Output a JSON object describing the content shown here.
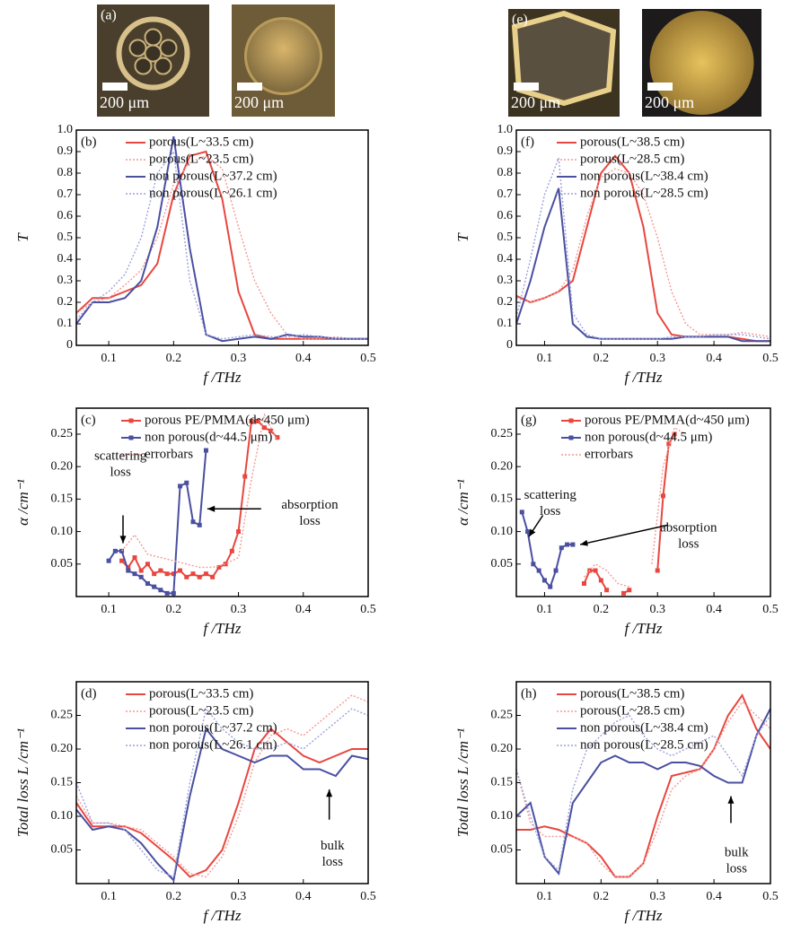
{
  "photos": [
    {
      "label": "(a)",
      "scale_bar": "200 μm"
    },
    {
      "scale_bar": "200 μm"
    },
    {
      "label": "(e)",
      "scale_bar": "200 μm"
    },
    {
      "scale_bar": "200 μm"
    }
  ],
  "chart_data": [
    {
      "type": "line",
      "label": "(b)",
      "xlabel": "f /THz",
      "ylabel": "T",
      "xlim": [
        0.05,
        0.5
      ],
      "ylim": [
        0,
        1
      ],
      "xticks": [
        0.1,
        0.2,
        0.3,
        0.4,
        0.5
      ],
      "yticks": [
        0,
        0.1,
        0.2,
        0.3,
        0.4,
        0.5,
        0.6,
        0.7,
        0.8,
        0.9,
        {
          "value": 1,
          "label": "1.0"
        }
      ],
      "x": [
        0.05,
        0.075,
        0.1,
        0.125,
        0.15,
        0.175,
        0.2,
        0.225,
        0.25,
        0.275,
        0.3,
        0.325,
        0.35,
        0.375,
        0.4,
        0.425,
        0.45,
        0.475,
        0.5
      ],
      "series": [
        {
          "name": "porous(L~33.5 cm)",
          "color": "#e8473f",
          "style": "solid",
          "values": [
            0.15,
            0.22,
            0.22,
            0.25,
            0.28,
            0.38,
            0.7,
            0.88,
            0.9,
            0.68,
            0.25,
            0.05,
            0.03,
            0.03,
            0.03,
            0.03,
            0.03,
            0.03,
            0.03
          ]
        },
        {
          "name": "porous(L~23.5 cm)",
          "color": "#f39a96",
          "style": "dotted",
          "values": [
            0.15,
            0.2,
            0.22,
            0.28,
            0.35,
            0.5,
            0.75,
            0.85,
            0.88,
            0.82,
            0.55,
            0.3,
            0.15,
            0.05,
            0.03,
            0.03,
            0.04,
            0.03,
            0.03
          ]
        },
        {
          "name": "non porous(L~37.2 cm)",
          "color": "#4a4fa0",
          "style": "solid",
          "values": [
            0.1,
            0.2,
            0.2,
            0.22,
            0.3,
            0.55,
            0.97,
            0.45,
            0.05,
            0.02,
            0.03,
            0.04,
            0.03,
            0.05,
            0.04,
            0.04,
            0.03,
            0.03,
            0.03
          ]
        },
        {
          "name": "non porous(L~26.1 cm)",
          "color": "#9ca2dc",
          "style": "dotted",
          "values": [
            0.12,
            0.2,
            0.25,
            0.33,
            0.5,
            0.8,
            0.9,
            0.3,
            0.05,
            0.03,
            0.04,
            0.05,
            0.04,
            0.04,
            0.05,
            0.04,
            0.03,
            0.03,
            0.03
          ]
        }
      ]
    },
    {
      "type": "line",
      "label": "(f)",
      "xlabel": "f /THz",
      "ylabel": "T",
      "xlim": [
        0.05,
        0.5
      ],
      "ylim": [
        0,
        1
      ],
      "xticks": [
        0.1,
        0.2,
        0.3,
        0.4,
        0.5
      ],
      "yticks": [
        0,
        0.1,
        0.2,
        0.3,
        0.4,
        0.5,
        0.6,
        0.7,
        0.8,
        0.9,
        {
          "value": 1,
          "label": "1.0"
        }
      ],
      "x": [
        0.05,
        0.075,
        0.1,
        0.125,
        0.15,
        0.175,
        0.2,
        0.225,
        0.25,
        0.275,
        0.3,
        0.325,
        0.35,
        0.375,
        0.4,
        0.425,
        0.45,
        0.475,
        0.5
      ],
      "series": [
        {
          "name": "porous(L~38.5 cm)",
          "color": "#e8473f",
          "style": "solid",
          "values": [
            0.23,
            0.2,
            0.22,
            0.25,
            0.3,
            0.55,
            0.8,
            0.88,
            0.8,
            0.55,
            0.15,
            0.05,
            0.04,
            0.04,
            0.04,
            0.04,
            0.03,
            0.02,
            0.02
          ]
        },
        {
          "name": "porous(L~28.5 cm)",
          "color": "#f39a96",
          "style": "dotted",
          "values": [
            0.22,
            0.2,
            0.22,
            0.25,
            0.35,
            0.6,
            0.78,
            0.82,
            0.8,
            0.7,
            0.5,
            0.25,
            0.1,
            0.05,
            0.05,
            0.05,
            0.06,
            0.05,
            0.04
          ]
        },
        {
          "name": "non porous(L~38.4 cm)",
          "color": "#4a4fa0",
          "style": "solid",
          "values": [
            0.1,
            0.3,
            0.55,
            0.73,
            0.1,
            0.04,
            0.03,
            0.03,
            0.03,
            0.03,
            0.03,
            0.03,
            0.04,
            0.04,
            0.04,
            0.04,
            0.02,
            0.02,
            0.02
          ]
        },
        {
          "name": "non porous(L~28.5 cm)",
          "color": "#9ca2dc",
          "style": "dotted",
          "values": [
            0.13,
            0.4,
            0.7,
            0.87,
            0.15,
            0.05,
            0.03,
            0.03,
            0.03,
            0.03,
            0.03,
            0.04,
            0.04,
            0.04,
            0.05,
            0.05,
            0.05,
            0.04,
            0.03
          ]
        }
      ]
    },
    {
      "type": "line",
      "label": "(c)",
      "xlabel": "f /THz",
      "ylabel": "α /cm⁻¹",
      "xlim": [
        0.05,
        0.5
      ],
      "ylim": [
        0,
        0.29
      ],
      "xticks": [
        0.1,
        0.2,
        0.3,
        0.4,
        0.5
      ],
      "yticks": [
        0.05,
        {
          "value": 0.1,
          "label": "0.10"
        },
        0.15,
        {
          "value": 0.2,
          "label": "0.20"
        },
        0.25
      ],
      "annotations": [
        [
          "scattering",
          "loss"
        ],
        [
          "absorption",
          "loss"
        ]
      ],
      "series": [
        {
          "name": "porous PE/PMMA(d~450 μm)",
          "color": "#e8473f",
          "style": "solid",
          "marker": "square",
          "x": [
            0.12,
            0.13,
            0.14,
            0.15,
            0.16,
            0.17,
            0.18,
            0.19,
            0.2,
            0.21,
            0.22,
            0.23,
            0.24,
            0.25,
            0.26,
            0.27,
            0.28,
            0.29,
            0.3,
            0.31,
            0.32,
            0.33,
            0.34,
            0.35,
            0.36
          ],
          "values": [
            0.055,
            0.045,
            0.06,
            0.04,
            0.05,
            0.035,
            0.04,
            0.035,
            0.035,
            0.04,
            0.03,
            0.035,
            0.03,
            0.035,
            0.03,
            0.045,
            0.05,
            0.07,
            0.1,
            0.185,
            0.27,
            0.27,
            0.26,
            0.255,
            0.245
          ]
        },
        {
          "name": "non porous(d~44.5 μm)",
          "color": "#4a4fa0",
          "style": "solid",
          "marker": "square",
          "x": [
            0.1,
            0.11,
            0.12,
            0.13,
            0.14,
            0.15,
            0.16,
            0.17,
            0.18,
            0.19,
            0.2,
            0.21,
            0.22,
            0.23,
            0.24,
            0.25
          ],
          "values": [
            0.055,
            0.07,
            0.07,
            0.04,
            0.035,
            0.03,
            0.02,
            0.015,
            0.01,
            0.005,
            0.005,
            0.17,
            0.175,
            0.115,
            0.11,
            0.225
          ]
        },
        {
          "name": "errorbars",
          "color": "#f39a96",
          "style": "dotted",
          "x": [
            0.12,
            0.14,
            0.16,
            0.18,
            0.2,
            0.22,
            0.24,
            0.26,
            0.28,
            0.3,
            0.32,
            0.34,
            0.36
          ],
          "values": [
            0.07,
            0.095,
            0.065,
            0.06,
            0.055,
            0.05,
            0.045,
            0.045,
            0.05,
            0.06,
            0.18,
            0.28,
            0.24
          ]
        }
      ]
    },
    {
      "type": "line",
      "label": "(g)",
      "xlabel": "f /THz",
      "ylabel": "α /cm⁻¹",
      "xlim": [
        0.05,
        0.5
      ],
      "ylim": [
        0,
        0.29
      ],
      "xticks": [
        0.1,
        0.2,
        0.3,
        0.4,
        0.5
      ],
      "yticks": [
        0.05,
        {
          "value": 0.1,
          "label": "0.10"
        },
        0.15,
        {
          "value": 0.2,
          "label": "0.20"
        },
        0.25
      ],
      "annotations": [
        [
          "scattering",
          "loss"
        ],
        [
          "absorption",
          "loss"
        ]
      ],
      "series": [
        {
          "name": "porous PE/PMMA(d~450 μm)",
          "color": "#e8473f",
          "style": "solid",
          "marker": "square",
          "x": [
            0.17,
            0.18,
            0.19,
            0.2,
            0.21,
            0.22,
            0.23,
            0.24,
            0.25,
            0.26,
            0.27,
            0.28,
            0.29,
            0.3,
            0.31,
            0.32,
            0.33
          ],
          "values": [
            0.02,
            0.04,
            0.04,
            0.025,
            0.01,
            null,
            null,
            0.005,
            0.01,
            null,
            null,
            null,
            null,
            0.04,
            0.155,
            0.235,
            0.25
          ]
        },
        {
          "name": "non porous(d~44.5 μm)",
          "color": "#4a4fa0",
          "style": "solid",
          "marker": "square",
          "x": [
            0.06,
            0.07,
            0.08,
            0.09,
            0.1,
            0.11,
            0.12,
            0.13,
            0.14,
            0.15
          ],
          "values": [
            0.13,
            0.1,
            0.05,
            0.04,
            0.025,
            0.015,
            0.04,
            0.075,
            0.08,
            0.08
          ]
        },
        {
          "name": "errorbars",
          "color": "#f39a96",
          "style": "dotted",
          "x": [
            0.17,
            0.19,
            0.21,
            0.23,
            0.25,
            0.27,
            0.29,
            0.31,
            0.33,
            0.35
          ],
          "values": [
            0.03,
            0.05,
            0.04,
            0.02,
            0.015,
            null,
            0.05,
            0.2,
            0.26,
            0.25
          ]
        }
      ]
    },
    {
      "type": "line",
      "label": "(d)",
      "xlabel": "f /THz",
      "ylabel": "Total loss L /cm⁻¹",
      "xlim": [
        0.05,
        0.5
      ],
      "ylim": [
        0,
        0.3
      ],
      "xticks": [
        0.1,
        0.2,
        0.3,
        0.4,
        0.5
      ],
      "yticks": [
        0.05,
        {
          "value": 0.1,
          "label": "0.10"
        },
        0.15,
        {
          "value": 0.2,
          "label": "0.20"
        },
        0.25
      ],
      "annotations": [
        [
          "bulk",
          "loss"
        ]
      ],
      "x": [
        0.05,
        0.075,
        0.1,
        0.125,
        0.15,
        0.175,
        0.2,
        0.225,
        0.25,
        0.275,
        0.3,
        0.325,
        0.35,
        0.375,
        0.4,
        0.425,
        0.45,
        0.475,
        0.5
      ],
      "series": [
        {
          "name": "porous(L~33.5 cm)",
          "color": "#e8473f",
          "style": "solid",
          "values": [
            0.12,
            0.085,
            0.085,
            0.085,
            0.075,
            0.055,
            0.035,
            0.01,
            0.02,
            0.05,
            0.12,
            0.2,
            0.23,
            0.21,
            0.19,
            0.18,
            0.19,
            0.2,
            0.2
          ]
        },
        {
          "name": "porous(L~23.5 cm)",
          "color": "#f39a96",
          "style": "dotted",
          "values": [
            0.13,
            0.09,
            0.09,
            0.085,
            0.08,
            0.06,
            0.04,
            0.015,
            0.01,
            0.04,
            0.1,
            0.18,
            0.22,
            0.23,
            0.22,
            0.24,
            0.26,
            0.28,
            0.27
          ]
        },
        {
          "name": "non porous(L~37.2 cm)",
          "color": "#4a4fa0",
          "style": "solid",
          "values": [
            0.11,
            0.08,
            0.085,
            0.08,
            0.06,
            0.03,
            0.005,
            0.13,
            0.23,
            0.2,
            0.19,
            0.18,
            0.19,
            0.19,
            0.17,
            0.17,
            0.16,
            0.19,
            0.185
          ]
        },
        {
          "name": "non porous(L~26.1 cm)",
          "color": "#9ca2dc",
          "style": "dotted",
          "values": [
            0.15,
            0.09,
            0.09,
            0.08,
            0.05,
            0.02,
            0.01,
            0.15,
            0.26,
            0.23,
            0.21,
            0.2,
            0.2,
            0.21,
            0.2,
            0.22,
            0.24,
            0.26,
            0.25
          ]
        }
      ]
    },
    {
      "type": "line",
      "label": "(h)",
      "xlabel": "f /THz",
      "ylabel": "Total loss L /cm⁻¹",
      "xlim": [
        0.05,
        0.5
      ],
      "ylim": [
        0,
        0.3
      ],
      "xticks": [
        0.1,
        0.2,
        0.3,
        0.4,
        0.5
      ],
      "yticks": [
        0.05,
        {
          "value": 0.1,
          "label": "0.10"
        },
        0.15,
        {
          "value": 0.2,
          "label": "0.20"
        },
        0.25
      ],
      "annotations": [
        [
          "bulk",
          "loss"
        ]
      ],
      "x": [
        0.05,
        0.075,
        0.1,
        0.125,
        0.15,
        0.175,
        0.2,
        0.225,
        0.25,
        0.275,
        0.3,
        0.325,
        0.35,
        0.375,
        0.4,
        0.425,
        0.45,
        0.475,
        0.5
      ],
      "series": [
        {
          "name": "porous(L~38.5 cm)",
          "color": "#e8473f",
          "style": "solid",
          "values": [
            0.08,
            0.08,
            0.085,
            0.08,
            0.07,
            0.06,
            0.04,
            0.01,
            0.01,
            0.03,
            0.1,
            0.16,
            0.165,
            0.17,
            0.2,
            0.25,
            0.28,
            0.23,
            0.2
          ]
        },
        {
          "name": "porous(L~28.5 cm)",
          "color": "#f39a96",
          "style": "dotted",
          "values": [
            0.17,
            0.09,
            0.07,
            0.07,
            0.07,
            0.06,
            0.03,
            0.01,
            0.01,
            0.03,
            0.08,
            0.14,
            0.16,
            0.17,
            0.2,
            0.24,
            0.27,
            0.25,
            0.23
          ]
        },
        {
          "name": "non porous(L~38.4 cm)",
          "color": "#4a4fa0",
          "style": "solid",
          "values": [
            0.1,
            0.12,
            0.04,
            0.015,
            0.12,
            0.15,
            0.18,
            0.19,
            0.18,
            0.18,
            0.17,
            0.18,
            0.18,
            0.175,
            0.16,
            0.15,
            0.15,
            0.22,
            0.26
          ]
        },
        {
          "name": "non porous(L~28.5 cm)",
          "color": "#9ca2dc",
          "style": "dotted",
          "values": [
            0.17,
            0.1,
            0.04,
            0.02,
            0.14,
            0.2,
            0.22,
            0.24,
            0.25,
            0.22,
            0.2,
            0.19,
            0.2,
            0.21,
            0.22,
            0.19,
            0.16,
            0.22,
            0.25
          ]
        }
      ]
    }
  ]
}
